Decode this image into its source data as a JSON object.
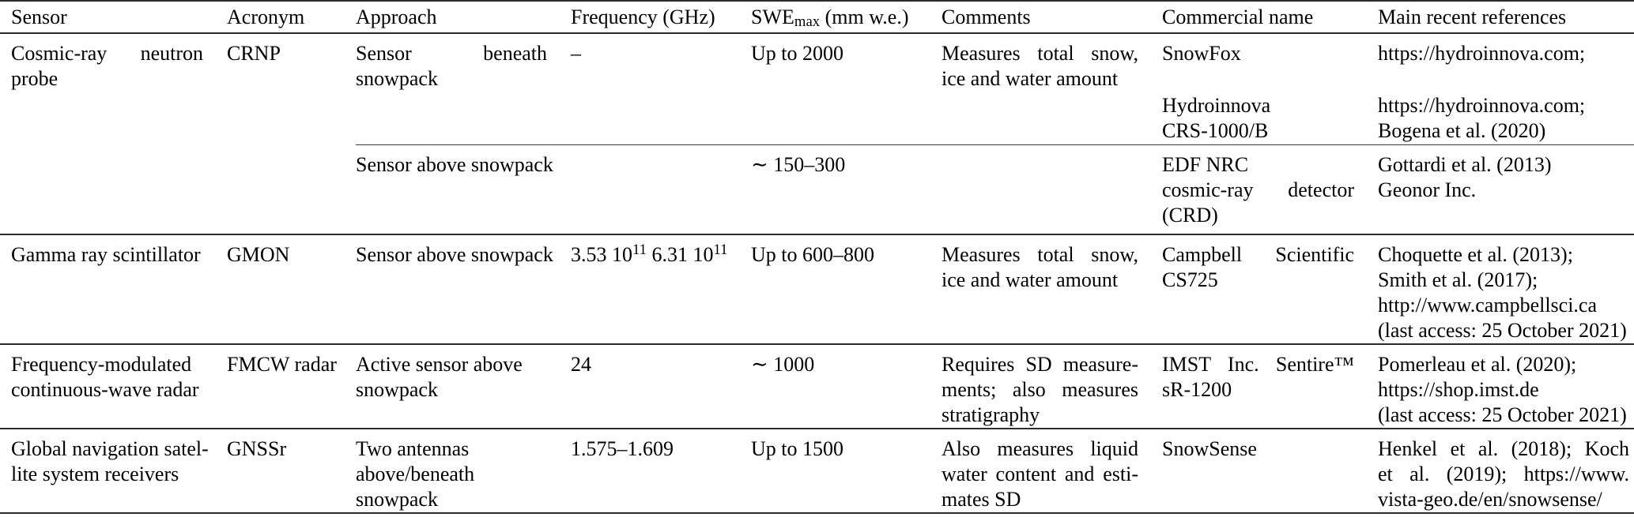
{
  "page": {
    "background": "#ffffff",
    "text_color": "#000000",
    "rule_color": "#2b2b2b",
    "subrule_color": "#3a3a3a"
  },
  "table": {
    "column_keys": [
      "sensor",
      "acronym",
      "approach",
      "frequency",
      "swe_max",
      "comments",
      "commercial",
      "references"
    ],
    "headers": [
      "Sensor",
      "Acronym",
      "Approach",
      "Frequency (GHz)",
      "SWE_max (mm w.e.)",
      "Comments",
      "Commercial name",
      "Main recent references"
    ],
    "rows": [
      {
        "sensor": {
          "lines": [
            "Cosmic-ray neutron",
            "probe"
          ],
          "j": [
            1,
            0
          ]
        },
        "acronym": "CRNP",
        "subrows": [
          {
            "approach": {
              "lines": [
                "Sensor beneath",
                "snowpack"
              ],
              "j": [
                1,
                0
              ]
            },
            "frequency": "–",
            "swe_max": "Up to 2000",
            "comments": {
              "lines": [
                "Measures total snow,",
                "ice and water amount"
              ],
              "j": [
                1,
                0
              ]
            },
            "commercial": {
              "blocks": [
                {
                  "lines": [
                    "SnowFox"
                  ],
                  "j": [
                    0
                  ]
                },
                {
                  "lines": [
                    "Hydroinnova",
                    "CRS-1000/B"
                  ],
                  "j": [
                    0,
                    0
                  ]
                }
              ]
            },
            "references": {
              "blocks": [
                {
                  "lines": [
                    "https://hydroinnova.com;"
                  ],
                  "j": [
                    0
                  ]
                },
                {
                  "lines": [
                    "https://hydroinnova.com;",
                    "Bogena et al. (2020)"
                  ],
                  "j": [
                    0,
                    0
                  ]
                }
              ]
            }
          },
          {
            "approach": "Sensor above snowpack",
            "frequency": "",
            "swe_max": "∼ 150–300",
            "comments": "",
            "commercial": {
              "lines": [
                "EDF NRC",
                "cosmic-ray detector",
                "(CRD)"
              ],
              "j": [
                0,
                1,
                0
              ]
            },
            "references": {
              "lines": [
                "Gottardi et al. (2013)",
                "Geonor Inc."
              ],
              "j": [
                0,
                0
              ]
            }
          }
        ]
      },
      {
        "sensor": "Gamma ray scintillator",
        "acronym": "GMON",
        "subrows": [
          {
            "approach": "Sensor above snowpack",
            "frequency": "3.53 10^11 6.31 10^11",
            "swe_max": "Up to 600–800",
            "comments": {
              "lines": [
                "Measures total snow,",
                "ice and water amount"
              ],
              "j": [
                1,
                0
              ]
            },
            "commercial": {
              "lines": [
                "Campbell Scientific",
                "CS725"
              ],
              "j": [
                1,
                0
              ]
            },
            "references": {
              "lines": [
                "Choquette et al. (2013);",
                "Smith et al. (2017);",
                "http://www.campbellsci.ca",
                "(last access: 25 October 2021)"
              ],
              "j": [
                0,
                0,
                0,
                0
              ]
            }
          }
        ]
      },
      {
        "sensor": {
          "lines": [
            "Frequency-modulated",
            "continuous-wave radar"
          ],
          "j": [
            0,
            0
          ]
        },
        "acronym": "FMCW radar",
        "subrows": [
          {
            "approach": {
              "lines": [
                "Active sensor above",
                "snowpack"
              ],
              "j": [
                0,
                0
              ]
            },
            "frequency": "24",
            "swe_max": "∼ 1000",
            "comments": {
              "lines": [
                "Requires SD measure-",
                "ments; also measures",
                "stratigraphy"
              ],
              "j": [
                1,
                1,
                0
              ]
            },
            "commercial": {
              "lines": [
                "IMST Inc. Sentire™",
                "sR-1200"
              ],
              "j": [
                1,
                0
              ]
            },
            "references": {
              "lines": [
                "Pomerleau et al. (2020);",
                "https://shop.imst.de",
                "(last access: 25 October 2021)"
              ],
              "j": [
                0,
                0,
                0
              ]
            }
          }
        ]
      },
      {
        "sensor": {
          "lines": [
            "Global navigation satel-",
            "lite system receivers"
          ],
          "j": [
            0,
            0
          ]
        },
        "acronym": "GNSSr",
        "subrows": [
          {
            "approach": {
              "lines": [
                "Two antennas",
                "above/beneath",
                "snowpack"
              ],
              "j": [
                0,
                0,
                0
              ]
            },
            "frequency": "1.575–1.609",
            "swe_max": "Up to 1500",
            "comments": {
              "lines": [
                "Also measures liquid",
                "water content and esti-",
                "mates SD"
              ],
              "j": [
                1,
                1,
                0
              ]
            },
            "commercial": "SnowSense",
            "references": {
              "lines": [
                "Henkel et al. (2018); Koch",
                "et al. (2019); https://www.",
                "vista-geo.de/en/snowsense/"
              ],
              "j": [
                1,
                1,
                0
              ]
            }
          }
        ]
      }
    ]
  }
}
